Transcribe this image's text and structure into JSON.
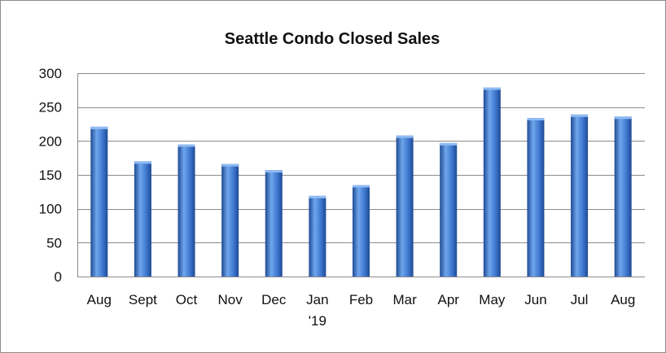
{
  "chart_data": {
    "type": "bar",
    "title": "Seattle Condo Closed Sales",
    "xlabel": "",
    "ylabel": "",
    "categories": [
      "Aug",
      "Sept",
      "Oct",
      "Nov",
      "Dec",
      "Jan '19",
      "Feb",
      "Mar",
      "Apr",
      "May",
      "Jun",
      "Jul",
      "Aug"
    ],
    "category_lines": [
      [
        "Aug"
      ],
      [
        "Sept"
      ],
      [
        "Oct"
      ],
      [
        "Nov"
      ],
      [
        "Dec"
      ],
      [
        "Jan",
        "'19"
      ],
      [
        "Feb"
      ],
      [
        "Mar"
      ],
      [
        "Apr"
      ],
      [
        "May"
      ],
      [
        "Jun"
      ],
      [
        "Jul"
      ],
      [
        "Aug"
      ]
    ],
    "values": [
      221,
      170,
      195,
      166,
      157,
      119,
      135,
      208,
      197,
      279,
      234,
      239,
      236
    ],
    "ylim": [
      0,
      300
    ],
    "yticks": [
      0,
      50,
      100,
      150,
      200,
      250,
      300
    ],
    "grid": true,
    "legend": "none",
    "colors": {
      "bar_light": "#6fa6ec",
      "bar_mid": "#3f78d0",
      "bar_dark": "#1e4a94",
      "bar_top": "#8fbaf2",
      "grid": "#8c8c8c",
      "axis": "#8c8c8c",
      "text": "#111111"
    }
  }
}
